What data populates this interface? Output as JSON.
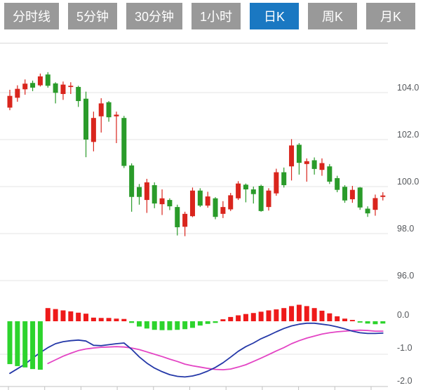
{
  "tab_bar": {
    "tabs": [
      {
        "label": "分时线",
        "active": false
      },
      {
        "label": "5分钟",
        "active": false
      },
      {
        "label": "30分钟",
        "active": false
      },
      {
        "label": "1小时",
        "active": false
      },
      {
        "label": "日K",
        "active": true
      },
      {
        "label": "周K",
        "active": false
      },
      {
        "label": "月K",
        "active": false
      }
    ]
  },
  "chart_data": {
    "type": "candlestick",
    "title": "",
    "panels": {
      "price_axis": {
        "values": [
          104.0,
          102.0,
          100.0,
          98.0,
          96.0
        ],
        "labels": [
          "104.0",
          "102.0",
          "100.0",
          "98.0",
          "96.0"
        ]
      },
      "macd_axis": {
        "values": [
          0.0,
          -1.0,
          -2.0
        ],
        "labels": [
          "0.0",
          "-1.0",
          "-2.0"
        ]
      }
    },
    "ohlc_note": "arrays are [open, high, low, close]; close>open renders red (CN up), close<open renders green (CN down)",
    "candles": [
      [
        103.36,
        104.12,
        103.25,
        103.86
      ],
      [
        103.78,
        104.31,
        103.61,
        104.16
      ],
      [
        104.14,
        104.56,
        103.91,
        104.38
      ],
      [
        104.41,
        104.51,
        104.06,
        104.21
      ],
      [
        104.31,
        104.81,
        104.26,
        104.69
      ],
      [
        104.77,
        104.87,
        104.21,
        104.29
      ],
      [
        104.39,
        104.44,
        103.54,
        103.99
      ],
      [
        103.94,
        104.47,
        103.69,
        104.34
      ],
      [
        104.24,
        104.44,
        103.94,
        104.29
      ],
      [
        104.24,
        104.29,
        103.39,
        103.64
      ],
      [
        103.74,
        104.04,
        101.25,
        102.0
      ],
      [
        101.9,
        103.19,
        101.5,
        102.92
      ],
      [
        102.99,
        103.76,
        102.3,
        103.54
      ],
      [
        103.59,
        103.64,
        102.76,
        102.95
      ],
      [
        102.99,
        103.19,
        101.85,
        103.06
      ],
      [
        102.92,
        103.01,
        100.79,
        100.88
      ],
      [
        100.9,
        100.99,
        98.93,
        99.56
      ],
      [
        99.98,
        100.11,
        99.23,
        99.56
      ],
      [
        99.43,
        100.33,
        98.88,
        100.18
      ],
      [
        100.06,
        100.18,
        99.08,
        99.28
      ],
      [
        99.25,
        99.88,
        98.79,
        99.5
      ],
      [
        99.43,
        99.5,
        99.0,
        99.16
      ],
      [
        99.13,
        99.23,
        97.92,
        98.27
      ],
      [
        98.29,
        98.93,
        97.89,
        98.84
      ],
      [
        98.74,
        99.96,
        98.7,
        99.83
      ],
      [
        99.83,
        99.93,
        99.13,
        99.19
      ],
      [
        99.19,
        99.78,
        99.1,
        99.58
      ],
      [
        99.5,
        99.55,
        98.61,
        98.71
      ],
      [
        98.84,
        99.38,
        98.66,
        99.13
      ],
      [
        99.03,
        99.73,
        98.96,
        99.63
      ],
      [
        99.5,
        100.23,
        99.43,
        100.13
      ],
      [
        100.08,
        100.13,
        99.33,
        99.88
      ],
      [
        99.88,
        100.0,
        99.28,
        99.68
      ],
      [
        100.03,
        100.08,
        98.93,
        98.96
      ],
      [
        99.13,
        99.93,
        98.98,
        99.83
      ],
      [
        99.71,
        100.76,
        99.61,
        100.61
      ],
      [
        100.61,
        100.81,
        99.96,
        100.06
      ],
      [
        100.86,
        102.02,
        100.26,
        101.75
      ],
      [
        101.78,
        101.85,
        100.51,
        101.01
      ],
      [
        100.96,
        101.2,
        100.21,
        101.08
      ],
      [
        101.12,
        101.24,
        100.51,
        100.75
      ],
      [
        100.71,
        101.2,
        100.46,
        101.0
      ],
      [
        100.86,
        100.96,
        100.11,
        100.21
      ],
      [
        100.36,
        100.46,
        99.76,
        99.86
      ],
      [
        99.99,
        100.06,
        99.31,
        99.41
      ],
      [
        99.46,
        100.03,
        99.31,
        99.86
      ],
      [
        99.96,
        99.98,
        99.01,
        99.11
      ],
      [
        99.06,
        99.16,
        98.71,
        98.86
      ],
      [
        99.01,
        99.66,
        98.76,
        99.51
      ],
      [
        99.56,
        99.76,
        99.41,
        99.62
      ]
    ],
    "macd_histogram": [
      -1.3,
      -1.36,
      -1.4,
      -1.45,
      -1.47,
      0.4,
      0.37,
      0.33,
      0.3,
      0.26,
      0.23,
      0.11,
      0.1,
      0.1,
      0.08,
      0.07,
      -0.05,
      -0.16,
      -0.22,
      -0.26,
      -0.27,
      -0.27,
      -0.26,
      -0.24,
      -0.2,
      -0.13,
      -0.08,
      -0.05,
      0.06,
      0.13,
      0.18,
      0.22,
      0.25,
      0.29,
      0.33,
      0.36,
      0.4,
      0.46,
      0.5,
      0.46,
      0.4,
      0.32,
      0.24,
      0.15,
      0.08,
      0.04,
      -0.04,
      -0.07,
      -0.09,
      -0.07
    ],
    "dif_line": [
      -1.58,
      -1.44,
      -1.3,
      -1.12,
      -0.95,
      -0.8,
      -0.68,
      -0.62,
      -0.59,
      -0.57,
      -0.6,
      -0.73,
      -0.74,
      -0.71,
      -0.68,
      -0.66,
      -0.85,
      -1.08,
      -1.27,
      -1.42,
      -1.53,
      -1.62,
      -1.67,
      -1.69,
      -1.66,
      -1.6,
      -1.51,
      -1.4,
      -1.26,
      -1.09,
      -0.91,
      -0.77,
      -0.66,
      -0.53,
      -0.43,
      -0.32,
      -0.22,
      -0.14,
      -0.09,
      -0.06,
      -0.06,
      -0.09,
      -0.12,
      -0.17,
      -0.23,
      -0.3,
      -0.35,
      -0.37,
      -0.37,
      -0.36
    ],
    "dea_line": [
      null,
      null,
      null,
      null,
      null,
      -1.28,
      -1.17,
      -1.06,
      -0.97,
      -0.89,
      -0.84,
      -0.81,
      -0.79,
      -0.78,
      -0.77,
      -0.78,
      -0.81,
      -0.86,
      -0.93,
      -1.0,
      -1.07,
      -1.15,
      -1.22,
      -1.3,
      -1.35,
      -1.39,
      -1.43,
      -1.46,
      -1.47,
      -1.45,
      -1.39,
      -1.32,
      -1.22,
      -1.12,
      -1.01,
      -0.9,
      -0.8,
      -0.68,
      -0.59,
      -0.51,
      -0.45,
      -0.39,
      -0.35,
      -0.32,
      -0.3,
      -0.28,
      -0.27,
      -0.28,
      -0.3,
      -0.3
    ],
    "colors": {
      "up": "#d9251d",
      "down": "#2a9b2a",
      "hist_up": "#ee1a1a",
      "hist_down": "#2dd42d",
      "dif": "#2438a8",
      "dea": "#e344c4",
      "tab_bg": "#999999",
      "tab_active_bg": "#1a78c2",
      "tab_text": "#ffffff",
      "axis_text": "#55585c",
      "grid": "#e4e4e4",
      "axis_line": "#c2c2c2",
      "separator": "#d8d8d8"
    },
    "layout_hints": {
      "legend": "none",
      "grid": "horizontal-only",
      "price_range": [
        96,
        104.87
      ],
      "macd_range": [
        -2,
        0.5
      ]
    }
  }
}
